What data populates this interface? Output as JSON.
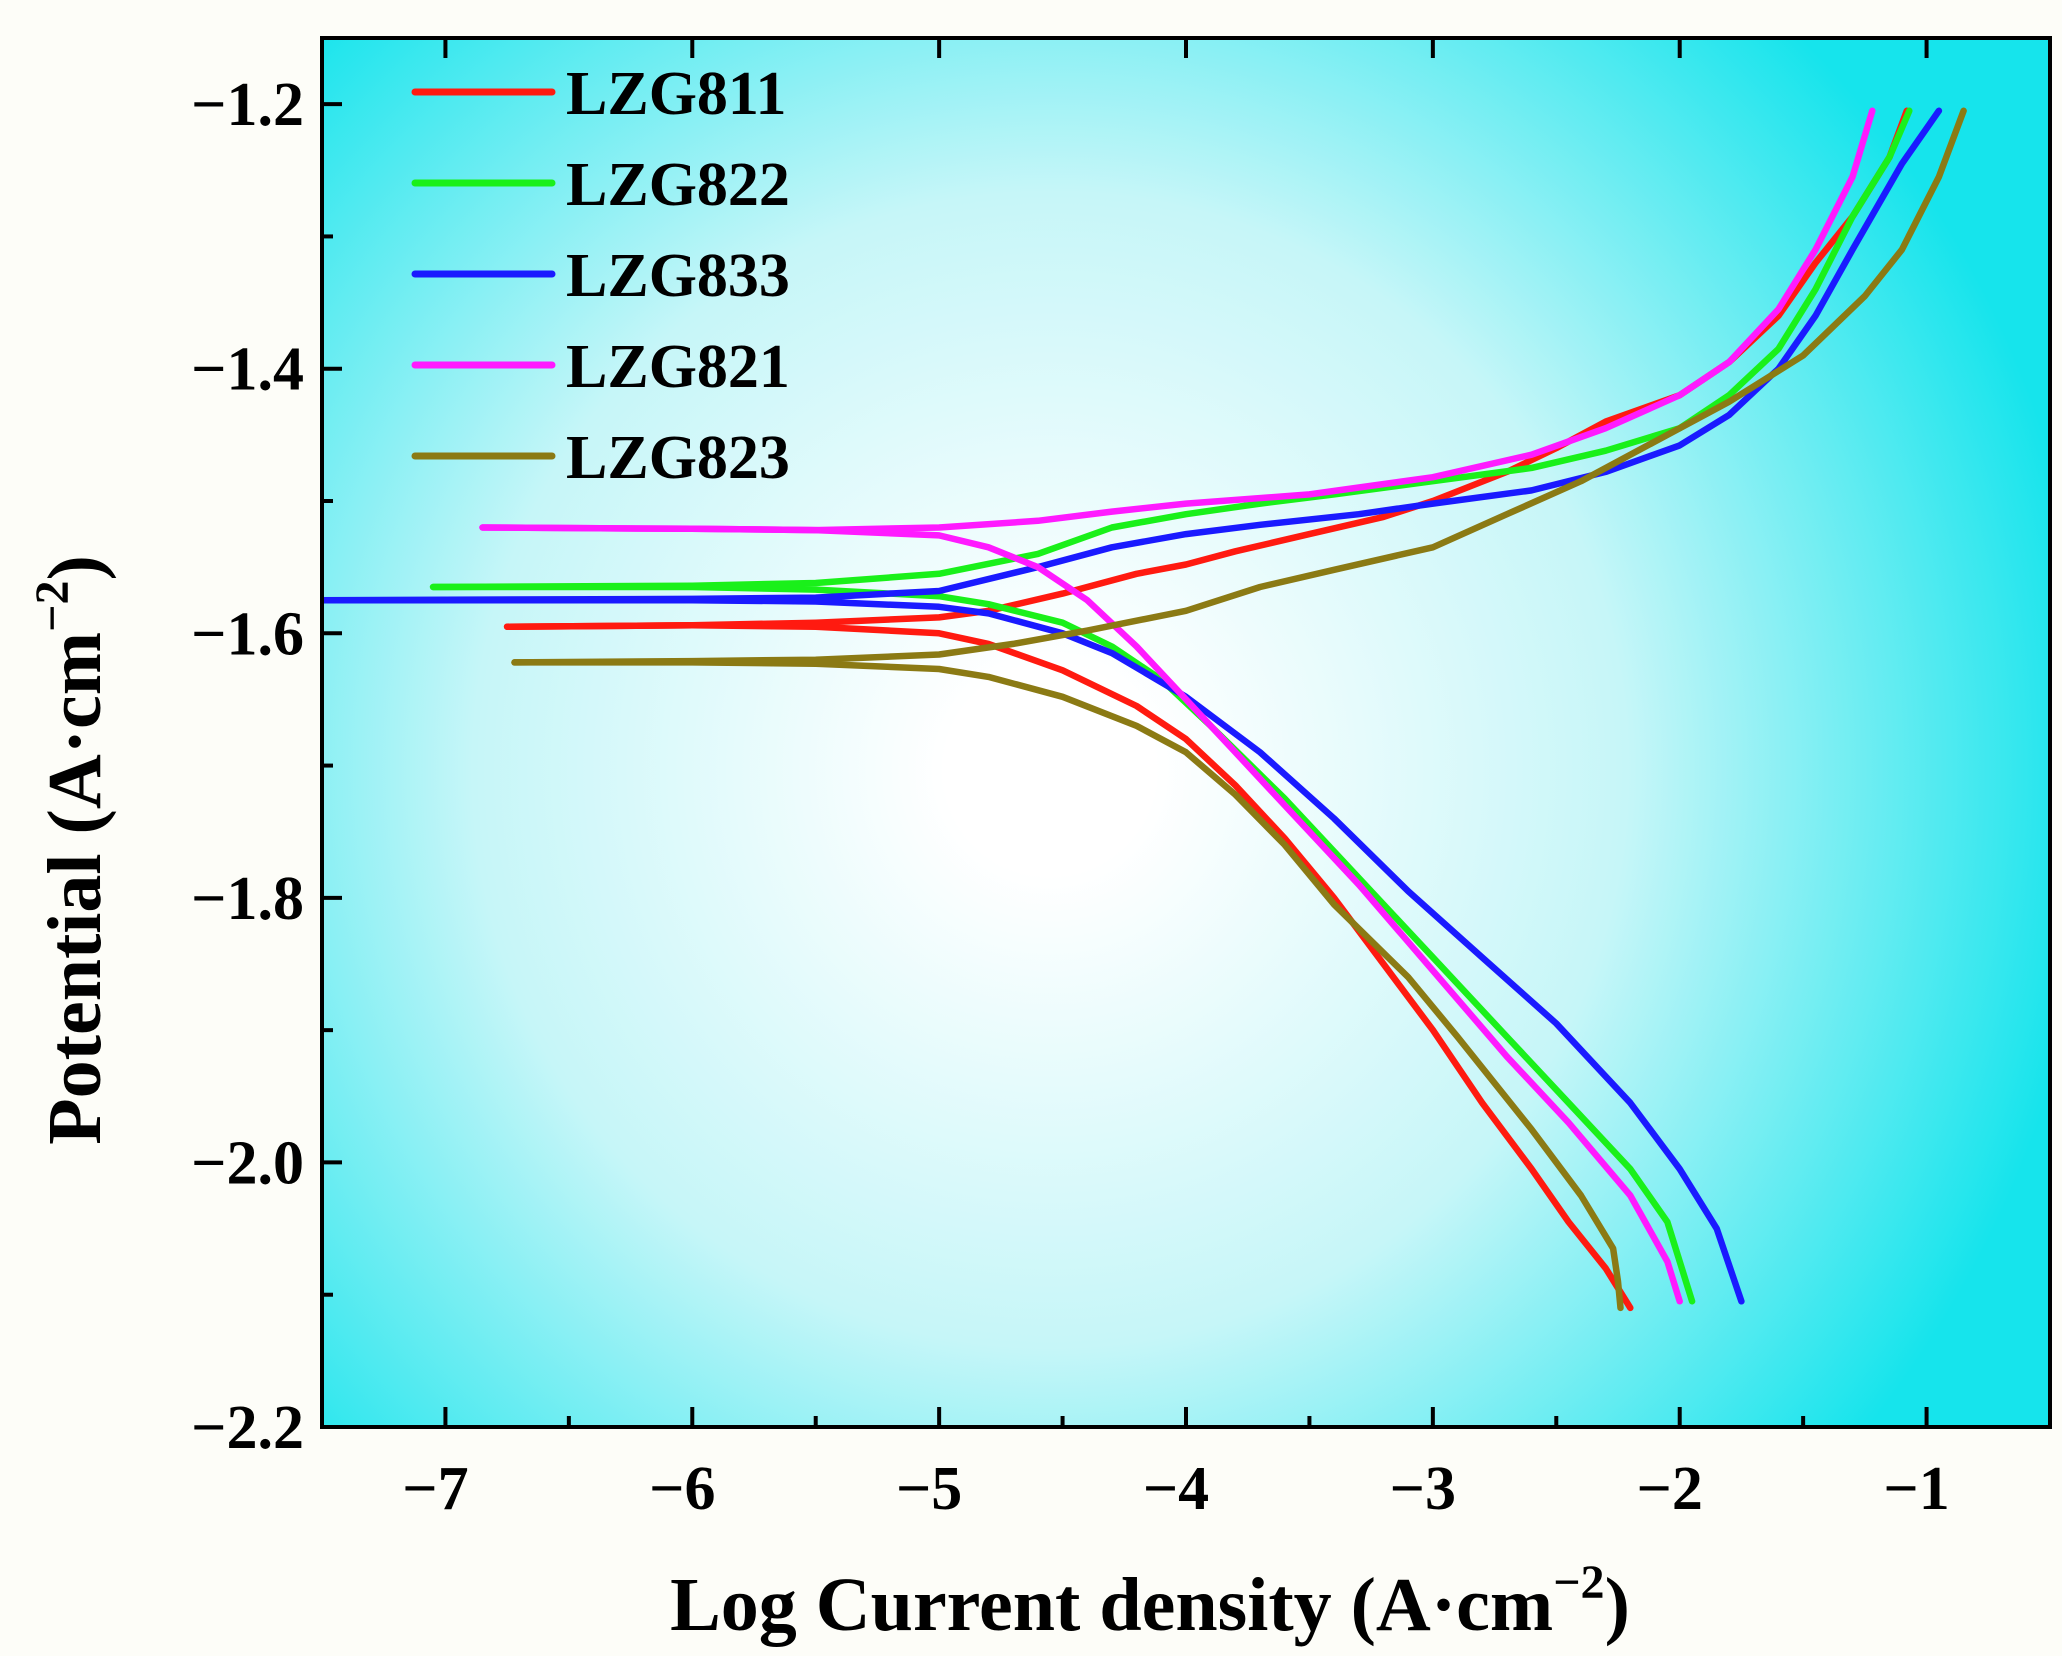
{
  "chart_data": {
    "type": "line",
    "title": "",
    "xlabel": "Log Current density (A·cm",
    "xlabel_sup": "−2",
    "xlabel_close": ")",
    "ylabel": "Potential (A·cm",
    "ylabel_sup": "−2",
    "ylabel_close": ")",
    "xlim": [
      -7.5,
      -0.5
    ],
    "ylim": [
      -2.2,
      -1.15
    ],
    "xticks": [
      -7,
      -6,
      -5,
      -4,
      -3,
      -2,
      -1
    ],
    "xtick_labels": [
      "−7",
      "−6",
      "−5",
      "−4",
      "−3",
      "−2",
      "−1"
    ],
    "yticks": [
      -1.2,
      -1.4,
      -1.6,
      -1.8,
      -2.0,
      -2.2
    ],
    "ytick_labels": [
      "−1.2",
      "−1.4",
      "−1.6",
      "−1.8",
      "−2.0",
      "−2.2"
    ],
    "legend_position": "top-left",
    "background": {
      "edge_color": "#16e4ec",
      "center_color": "#ffffff"
    },
    "series": [
      {
        "name": "LZG811",
        "color": "#ff1a10",
        "anodic": [
          [
            -6.75,
            -1.595
          ],
          [
            -6.0,
            -1.594
          ],
          [
            -5.5,
            -1.592
          ],
          [
            -5.0,
            -1.588
          ],
          [
            -4.8,
            -1.583
          ],
          [
            -4.5,
            -1.57
          ],
          [
            -4.2,
            -1.555
          ],
          [
            -4.0,
            -1.548
          ],
          [
            -3.8,
            -1.538
          ],
          [
            -3.5,
            -1.525
          ],
          [
            -3.2,
            -1.512
          ],
          [
            -3.0,
            -1.5
          ],
          [
            -2.7,
            -1.478
          ],
          [
            -2.5,
            -1.46
          ],
          [
            -2.3,
            -1.44
          ],
          [
            -2.0,
            -1.42
          ],
          [
            -1.8,
            -1.395
          ],
          [
            -1.6,
            -1.36
          ],
          [
            -1.45,
            -1.32
          ],
          [
            -1.3,
            -1.285
          ],
          [
            -1.15,
            -1.24
          ],
          [
            -1.08,
            -1.205
          ]
        ],
        "cathodic": [
          [
            -6.75,
            -1.595
          ],
          [
            -6.0,
            -1.594
          ],
          [
            -5.5,
            -1.595
          ],
          [
            -5.0,
            -1.6
          ],
          [
            -4.8,
            -1.608
          ],
          [
            -4.5,
            -1.628
          ],
          [
            -4.2,
            -1.655
          ],
          [
            -4.0,
            -1.68
          ],
          [
            -3.8,
            -1.715
          ],
          [
            -3.6,
            -1.755
          ],
          [
            -3.4,
            -1.8
          ],
          [
            -3.2,
            -1.85
          ],
          [
            -3.0,
            -1.9
          ],
          [
            -2.8,
            -1.955
          ],
          [
            -2.6,
            -2.005
          ],
          [
            -2.45,
            -2.045
          ],
          [
            -2.3,
            -2.08
          ],
          [
            -2.2,
            -2.11
          ]
        ]
      },
      {
        "name": "LZG822",
        "color": "#1af01a",
        "anodic": [
          [
            -7.05,
            -1.565
          ],
          [
            -6.0,
            -1.564
          ],
          [
            -5.5,
            -1.562
          ],
          [
            -5.0,
            -1.555
          ],
          [
            -4.6,
            -1.54
          ],
          [
            -4.3,
            -1.52
          ],
          [
            -4.0,
            -1.51
          ],
          [
            -3.7,
            -1.502
          ],
          [
            -3.4,
            -1.495
          ],
          [
            -3.0,
            -1.485
          ],
          [
            -2.6,
            -1.475
          ],
          [
            -2.3,
            -1.462
          ],
          [
            -2.0,
            -1.445
          ],
          [
            -1.8,
            -1.42
          ],
          [
            -1.6,
            -1.385
          ],
          [
            -1.45,
            -1.34
          ],
          [
            -1.3,
            -1.285
          ],
          [
            -1.15,
            -1.24
          ],
          [
            -1.07,
            -1.205
          ]
        ],
        "cathodic": [
          [
            -7.05,
            -1.565
          ],
          [
            -6.0,
            -1.565
          ],
          [
            -5.5,
            -1.567
          ],
          [
            -5.0,
            -1.572
          ],
          [
            -4.8,
            -1.578
          ],
          [
            -4.5,
            -1.592
          ],
          [
            -4.3,
            -1.61
          ],
          [
            -4.1,
            -1.635
          ],
          [
            -3.9,
            -1.67
          ],
          [
            -3.6,
            -1.725
          ],
          [
            -3.3,
            -1.785
          ],
          [
            -3.0,
            -1.845
          ],
          [
            -2.7,
            -1.905
          ],
          [
            -2.45,
            -1.955
          ],
          [
            -2.2,
            -2.005
          ],
          [
            -2.05,
            -2.045
          ],
          [
            -1.95,
            -2.105
          ]
        ]
      },
      {
        "name": "LZG833",
        "color": "#1a1aff",
        "anodic": [
          [
            -7.5,
            -1.575
          ],
          [
            -6.0,
            -1.574
          ],
          [
            -5.5,
            -1.573
          ],
          [
            -5.0,
            -1.568
          ],
          [
            -4.6,
            -1.55
          ],
          [
            -4.3,
            -1.535
          ],
          [
            -4.0,
            -1.525
          ],
          [
            -3.7,
            -1.518
          ],
          [
            -3.3,
            -1.51
          ],
          [
            -3.0,
            -1.502
          ],
          [
            -2.6,
            -1.492
          ],
          [
            -2.3,
            -1.478
          ],
          [
            -2.0,
            -1.458
          ],
          [
            -1.8,
            -1.435
          ],
          [
            -1.6,
            -1.4
          ],
          [
            -1.45,
            -1.36
          ],
          [
            -1.3,
            -1.31
          ],
          [
            -1.1,
            -1.245
          ],
          [
            -0.95,
            -1.205
          ]
        ],
        "cathodic": [
          [
            -7.5,
            -1.575
          ],
          [
            -6.0,
            -1.575
          ],
          [
            -5.5,
            -1.576
          ],
          [
            -5.0,
            -1.58
          ],
          [
            -4.8,
            -1.585
          ],
          [
            -4.5,
            -1.6
          ],
          [
            -4.3,
            -1.615
          ],
          [
            -4.0,
            -1.648
          ],
          [
            -3.7,
            -1.69
          ],
          [
            -3.4,
            -1.74
          ],
          [
            -3.1,
            -1.795
          ],
          [
            -2.8,
            -1.845
          ],
          [
            -2.5,
            -1.895
          ],
          [
            -2.2,
            -1.955
          ],
          [
            -2.0,
            -2.005
          ],
          [
            -1.85,
            -2.05
          ],
          [
            -1.75,
            -2.105
          ]
        ]
      },
      {
        "name": "LZG821",
        "color": "#ff1aff",
        "anodic": [
          [
            -6.85,
            -1.52
          ],
          [
            -6.0,
            -1.521
          ],
          [
            -5.5,
            -1.522
          ],
          [
            -5.0,
            -1.52
          ],
          [
            -4.6,
            -1.515
          ],
          [
            -4.3,
            -1.508
          ],
          [
            -4.0,
            -1.502
          ],
          [
            -3.5,
            -1.495
          ],
          [
            -3.0,
            -1.482
          ],
          [
            -2.6,
            -1.465
          ],
          [
            -2.3,
            -1.445
          ],
          [
            -2.0,
            -1.42
          ],
          [
            -1.8,
            -1.395
          ],
          [
            -1.6,
            -1.355
          ],
          [
            -1.45,
            -1.31
          ],
          [
            -1.3,
            -1.255
          ],
          [
            -1.22,
            -1.205
          ]
        ],
        "cathodic": [
          [
            -6.85,
            -1.52
          ],
          [
            -6.0,
            -1.521
          ],
          [
            -5.5,
            -1.522
          ],
          [
            -5.0,
            -1.526
          ],
          [
            -4.8,
            -1.535
          ],
          [
            -4.6,
            -1.55
          ],
          [
            -4.4,
            -1.575
          ],
          [
            -4.2,
            -1.61
          ],
          [
            -4.0,
            -1.65
          ],
          [
            -3.8,
            -1.69
          ],
          [
            -3.6,
            -1.73
          ],
          [
            -3.3,
            -1.79
          ],
          [
            -3.0,
            -1.855
          ],
          [
            -2.7,
            -1.92
          ],
          [
            -2.45,
            -1.97
          ],
          [
            -2.2,
            -2.025
          ],
          [
            -2.05,
            -2.075
          ],
          [
            -2.0,
            -2.105
          ]
        ]
      },
      {
        "name": "LZG823",
        "color": "#8b7a14",
        "anodic": [
          [
            -6.72,
            -1.622
          ],
          [
            -6.0,
            -1.621
          ],
          [
            -5.5,
            -1.62
          ],
          [
            -5.0,
            -1.616
          ],
          [
            -4.7,
            -1.608
          ],
          [
            -4.4,
            -1.598
          ],
          [
            -4.0,
            -1.583
          ],
          [
            -3.7,
            -1.565
          ],
          [
            -3.4,
            -1.552
          ],
          [
            -3.0,
            -1.535
          ],
          [
            -2.7,
            -1.51
          ],
          [
            -2.4,
            -1.485
          ],
          [
            -2.1,
            -1.455
          ],
          [
            -1.8,
            -1.425
          ],
          [
            -1.5,
            -1.39
          ],
          [
            -1.25,
            -1.345
          ],
          [
            -1.1,
            -1.31
          ],
          [
            -0.95,
            -1.255
          ],
          [
            -0.85,
            -1.205
          ]
        ],
        "cathodic": [
          [
            -6.72,
            -1.622
          ],
          [
            -6.0,
            -1.622
          ],
          [
            -5.5,
            -1.623
          ],
          [
            -5.0,
            -1.627
          ],
          [
            -4.8,
            -1.633
          ],
          [
            -4.5,
            -1.648
          ],
          [
            -4.2,
            -1.67
          ],
          [
            -4.0,
            -1.69
          ],
          [
            -3.8,
            -1.722
          ],
          [
            -3.6,
            -1.76
          ],
          [
            -3.4,
            -1.805
          ],
          [
            -3.1,
            -1.86
          ],
          [
            -2.9,
            -1.905
          ],
          [
            -2.6,
            -1.975
          ],
          [
            -2.4,
            -2.025
          ],
          [
            -2.27,
            -2.065
          ],
          [
            -2.25,
            -2.09
          ],
          [
            -2.24,
            -2.11
          ]
        ]
      }
    ]
  }
}
